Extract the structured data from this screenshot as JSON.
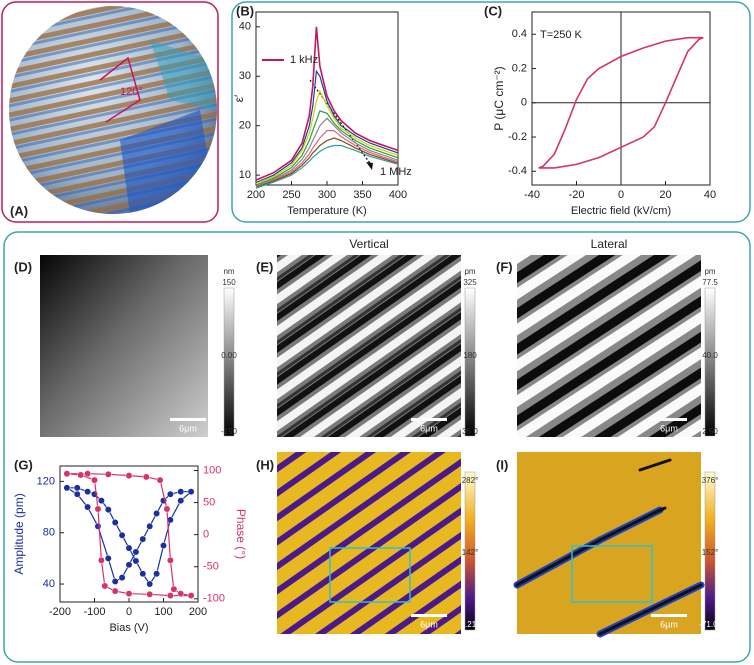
{
  "panel_labels": [
    "(A)",
    "(B)",
    "(C)",
    "(D)",
    "(E)",
    "(F)",
    "(G)",
    "(H)",
    "(I)"
  ],
  "a_annotation": "120°",
  "column_titles": [
    "Vertical",
    "Lateral"
  ],
  "maps": [
    {
      "unit": "nm",
      "ticks": [
        "150",
        "0.00",
        "-150"
      ],
      "scale_bar": "6μm"
    },
    {
      "unit": "pm",
      "ticks": [
        "325",
        "180",
        "35.0"
      ],
      "scale_bar": "6μm"
    },
    {
      "unit": "pm",
      "ticks": [
        "77.5",
        "40.0",
        "2.50"
      ],
      "scale_bar": "6μm"
    },
    {
      "ticks": [
        "282°",
        "142°",
        "3.21°"
      ],
      "scale_bar": "6μm"
    },
    {
      "ticks": [
        "376°",
        "152°",
        "-71.0°"
      ],
      "scale_bar": "6μm"
    }
  ],
  "chart_data": [
    {
      "type": "line",
      "xlabel": "Temperature (K)",
      "ylabel": "ε′",
      "xlim": [
        200,
        400
      ],
      "xticks": [
        200,
        250,
        300,
        350,
        400
      ],
      "ylim": [
        8,
        43
      ],
      "yticks": [
        10,
        20,
        30,
        40
      ],
      "annotations": [
        "1 MHz"
      ],
      "x": [
        200,
        225,
        250,
        265,
        275,
        280,
        285,
        290,
        300,
        310,
        320,
        340,
        360,
        380,
        400
      ],
      "series": [
        {
          "name": "1 kHz",
          "color": "#c2185b",
          "values": [
            9,
            10.5,
            13,
            16.5,
            22,
            28,
            40,
            32,
            26,
            23,
            21,
            18.5,
            17,
            16,
            15
          ]
        },
        {
          "color": "#1e3fa0",
          "values": [
            8.5,
            10,
            12.5,
            15.5,
            20,
            24,
            31,
            30,
            25,
            22,
            20,
            18,
            16.5,
            15.5,
            14.5
          ]
        },
        {
          "color": "#c8d400",
          "values": [
            8.3,
            9.7,
            12,
            15,
            18.5,
            21.5,
            25,
            27,
            24,
            21.5,
            19.5,
            17.5,
            16,
            15,
            14
          ]
        },
        {
          "color": "#2e9e3e",
          "values": [
            8,
            9.4,
            11.5,
            14,
            17,
            19,
            21,
            23,
            22.5,
            20.5,
            19,
            17,
            15.5,
            14.5,
            13.5
          ]
        },
        {
          "color": "#888888",
          "values": [
            7.8,
            9.2,
            11,
            13.2,
            15.5,
            17,
            18.5,
            20,
            21.5,
            20,
            18.5,
            16.5,
            15,
            14,
            13
          ]
        },
        {
          "color": "#e0607e",
          "values": [
            7.6,
            9,
            10.6,
            12.5,
            14.3,
            15.5,
            16.5,
            17.5,
            19,
            19,
            17.8,
            16,
            14.6,
            13.6,
            12.7
          ]
        },
        {
          "color": "#8b4513",
          "values": [
            7.5,
            8.8,
            10.3,
            12,
            13.5,
            14.5,
            15.2,
            16,
            17,
            17.5,
            17,
            15.5,
            14.2,
            13.3,
            12.4
          ]
        },
        {
          "color": "#2aa198",
          "values": [
            7.4,
            8.6,
            10,
            11.5,
            12.8,
            13.6,
            14.2,
            14.8,
            15.6,
            16,
            16,
            15,
            13.8,
            13,
            12.2
          ]
        }
      ]
    },
    {
      "type": "line",
      "xlabel": "Electric field (kV/cm)",
      "ylabel": "P (μC cm⁻²)",
      "xlim": [
        -40,
        40
      ],
      "xticks": [
        -40,
        -20,
        0,
        20,
        40
      ],
      "ylim": [
        -0.48,
        0.53
      ],
      "yticks": [
        -0.4,
        -0.2,
        0,
        0.2,
        0.4
      ],
      "zero_lines": true,
      "annotations": [
        "T=250 K"
      ],
      "series": [
        {
          "color": "#d6336c",
          "x": [
            37,
            30,
            20,
            10,
            0,
            -10,
            -15,
            -20,
            -25,
            -30,
            -35,
            -37,
            -30,
            -20,
            -10,
            0,
            10,
            15,
            20,
            25,
            30,
            35,
            37
          ],
          "values": [
            0.38,
            0.38,
            0.36,
            0.32,
            0.27,
            0.2,
            0.14,
            0.02,
            -0.15,
            -0.3,
            -0.37,
            -0.38,
            -0.38,
            -0.36,
            -0.32,
            -0.26,
            -0.2,
            -0.14,
            0,
            0.15,
            0.3,
            0.37,
            0.38
          ]
        }
      ]
    },
    {
      "type": "line",
      "markers": true,
      "xlabel": "Bias (V)",
      "ylabel": "Amplitude (pm)",
      "y2label": "Phase (°)",
      "xlim": [
        -200,
        200
      ],
      "xticks": [
        -200,
        -100,
        0,
        100,
        200
      ],
      "ylim": [
        26,
        132
      ],
      "yticks": [
        40,
        80,
        120
      ],
      "y2lim": [
        -105,
        107
      ],
      "y2ticks": [
        -100,
        -50,
        0,
        50,
        100
      ],
      "series": [
        {
          "color": "#1a2fa0",
          "x": [
            -180,
            -150,
            -120,
            -90,
            -60,
            -40,
            -20,
            0,
            20,
            40,
            60,
            80,
            100,
            120,
            150,
            180,
            150,
            120,
            100,
            80,
            60,
            40,
            20,
            0,
            -20,
            -40,
            -60,
            -80,
            -100,
            -120,
            -150,
            -180
          ],
          "values": [
            115,
            110,
            100,
            85,
            60,
            42,
            45,
            55,
            65,
            75,
            85,
            95,
            105,
            110,
            112,
            112,
            105,
            90,
            70,
            48,
            40,
            48,
            58,
            68,
            78,
            88,
            98,
            105,
            110,
            112,
            115,
            115
          ]
        },
        {
          "color": "#d6336c",
          "axis": "y2",
          "x": [
            -180,
            -120,
            -60,
            0,
            50,
            90,
            110,
            120,
            130,
            150,
            180,
            120,
            60,
            0,
            -40,
            -70,
            -80,
            -90,
            -100,
            -140,
            -180
          ],
          "values": [
            95,
            95,
            94,
            92,
            90,
            85,
            40,
            -40,
            -85,
            -92,
            -95,
            -95,
            -93,
            -92,
            -88,
            -80,
            -40,
            40,
            85,
            93,
            95
          ]
        }
      ]
    }
  ]
}
